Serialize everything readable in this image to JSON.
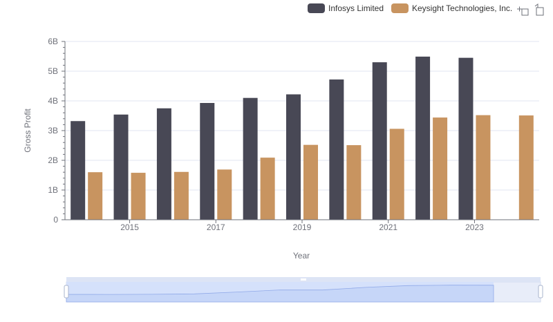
{
  "chart_data": {
    "type": "bar",
    "categories": [
      "2014",
      "2015",
      "2016",
      "2017",
      "2018",
      "2019",
      "2020",
      "2021",
      "2022",
      "2023",
      "2024"
    ],
    "x_tick_labels": [
      "2015",
      "2017",
      "2019",
      "2021",
      "2023"
    ],
    "series": [
      {
        "name": "Infosys Limited",
        "color": "#484855",
        "values": [
          3.32,
          3.54,
          3.75,
          3.93,
          4.1,
          4.22,
          4.72,
          5.3,
          5.49,
          5.45,
          null
        ]
      },
      {
        "name": "Keysight Technologies, Inc.",
        "color": "#c89460",
        "values": [
          1.6,
          1.58,
          1.61,
          1.69,
          2.09,
          2.52,
          2.51,
          3.06,
          3.44,
          3.52,
          3.51
        ]
      }
    ],
    "xlabel": "Year",
    "ylabel": "Gross Profit",
    "ylim": [
      0,
      6
    ],
    "y_ticks": [
      {
        "value": 0,
        "label": "0"
      },
      {
        "value": 1,
        "label": "1B"
      },
      {
        "value": 2,
        "label": "2B"
      },
      {
        "value": 3,
        "label": "3B"
      },
      {
        "value": 4,
        "label": "4B"
      },
      {
        "value": 5,
        "label": "5B"
      },
      {
        "value": 6,
        "label": "6B"
      }
    ],
    "grid": true,
    "legend_position": "top-right"
  },
  "toolbar": {
    "zoom_icon": "crosshair-zoom-icon",
    "reset_icon": "restore-icon"
  },
  "data_zoom": {
    "range_start_percent": 0,
    "range_end_percent": 100
  }
}
